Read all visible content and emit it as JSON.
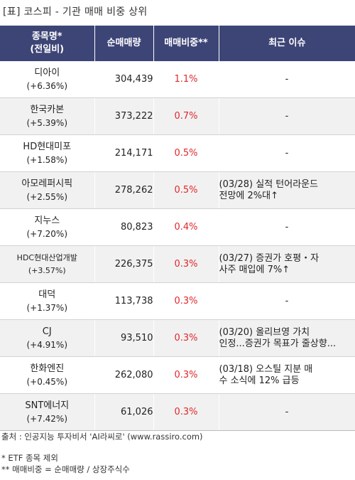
{
  "title": "[표] 코스피 - 기관 매매 비중 상위",
  "headers": {
    "name_line1": "종목명*",
    "name_line2": "(전일비)",
    "volume": "순매매량",
    "ratio": "매매비중**",
    "issue": "최근 이슈"
  },
  "rows": [
    {
      "name": "디아이",
      "change": "(+6.36%)",
      "volume": "304,439",
      "ratio": "1.1%",
      "issue_line1": "-",
      "issue_line2": ""
    },
    {
      "name": "한국카본",
      "change": "(+5.39%)",
      "volume": "373,222",
      "ratio": "0.7%",
      "issue_line1": "-",
      "issue_line2": ""
    },
    {
      "name": "HD현대미포",
      "change": "(+1.58%)",
      "volume": "214,171",
      "ratio": "0.5%",
      "issue_line1": "-",
      "issue_line2": ""
    },
    {
      "name": "아모레퍼시픽",
      "change": "(+2.55%)",
      "volume": "278,262",
      "ratio": "0.5%",
      "issue_line1": "(03/28) 실적 턴어라운드",
      "issue_line2": "전망에 2%대↑"
    },
    {
      "name": "지누스",
      "change": "(+7.20%)",
      "volume": "80,823",
      "ratio": "0.4%",
      "issue_line1": "-",
      "issue_line2": ""
    },
    {
      "name": "HDC현대산업개발",
      "change": "(+3.57%)",
      "volume": "226,375",
      "ratio": "0.3%",
      "issue_line1": "(03/27) 증권가 호평・자",
      "issue_line2": "사주 매입에 7%↑"
    },
    {
      "name": "대덕",
      "change": "(+1.37%)",
      "volume": "113,738",
      "ratio": "0.3%",
      "issue_line1": "-",
      "issue_line2": ""
    },
    {
      "name": "CJ",
      "change": "(+4.91%)",
      "volume": "93,510",
      "ratio": "0.3%",
      "issue_line1": "(03/20) 올리브영 가치",
      "issue_line2": "인정...증권가 목표가 줄상향..."
    },
    {
      "name": "한화엔진",
      "change": "(+0.45%)",
      "volume": "262,080",
      "ratio": "0.3%",
      "issue_line1": "(03/18) 오스틸 지분 매",
      "issue_line2": "수 소식에 12% 급등"
    },
    {
      "name": "SNT에너지",
      "change": "(+7.42%)",
      "volume": "61,026",
      "ratio": "0.3%",
      "issue_line1": "-",
      "issue_line2": ""
    }
  ],
  "footer": {
    "source": "출처 : 인공지능 투자비서 'AI라씨로' (www.rassiro.com)",
    "note1": "* ETF 종목 제외",
    "note2": "** 매매비중 = 순매매량 / 상장주식수"
  }
}
